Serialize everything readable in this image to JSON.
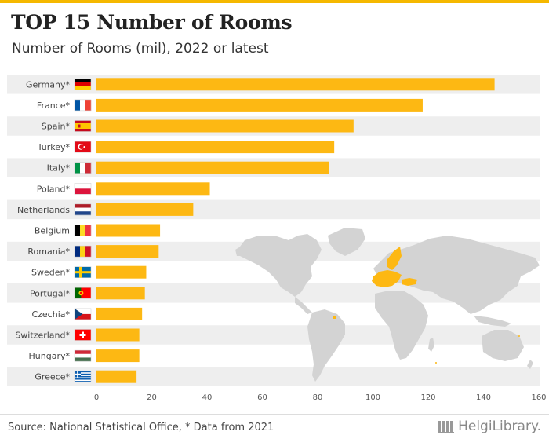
{
  "header": {
    "title": "TOP 15 Number of Rooms",
    "subtitle": "Number of Rooms (mil), 2022 or latest"
  },
  "footer": {
    "source": "Source: National Statistical Office, * Data from 2021",
    "logo_text": "HelgiLibrary."
  },
  "colors": {
    "bar": "#fdb813",
    "accent": "#f5b800",
    "row_band": "#eeeeee",
    "map_land": "#d3d3d3",
    "map_highlight": "#fdb813"
  },
  "chart_data": {
    "type": "bar",
    "orientation": "horizontal",
    "title": "TOP 15 Number of Rooms",
    "subtitle": "Number of Rooms (mil), 2022 or latest",
    "categories": [
      "Germany*",
      "France*",
      "Spain*",
      "Turkey*",
      "Italy*",
      "Poland*",
      "Netherlands",
      "Belgium",
      "Romania*",
      "Sweden*",
      "Portugal*",
      "Czechia*",
      "Switzerland*",
      "Hungary*",
      "Greece*"
    ],
    "flags": [
      "germany-flag",
      "france-flag",
      "spain-flag",
      "turkey-flag",
      "italy-flag",
      "poland-flag",
      "netherlands-flag",
      "belgium-flag",
      "romania-flag",
      "sweden-flag",
      "portugal-flag",
      "czechia-flag",
      "switzerland-flag",
      "hungary-flag",
      "greece-flag"
    ],
    "values": [
      144,
      118,
      93,
      86,
      84,
      41,
      35,
      23,
      22.5,
      18,
      17.5,
      16.5,
      15.5,
      15.5,
      14.5
    ],
    "xlim": [
      0,
      160
    ],
    "xticks": [
      0,
      20,
      40,
      60,
      80,
      100,
      120,
      140,
      160
    ],
    "xlabel": "",
    "ylabel": "",
    "grid": false,
    "legend": "none"
  }
}
